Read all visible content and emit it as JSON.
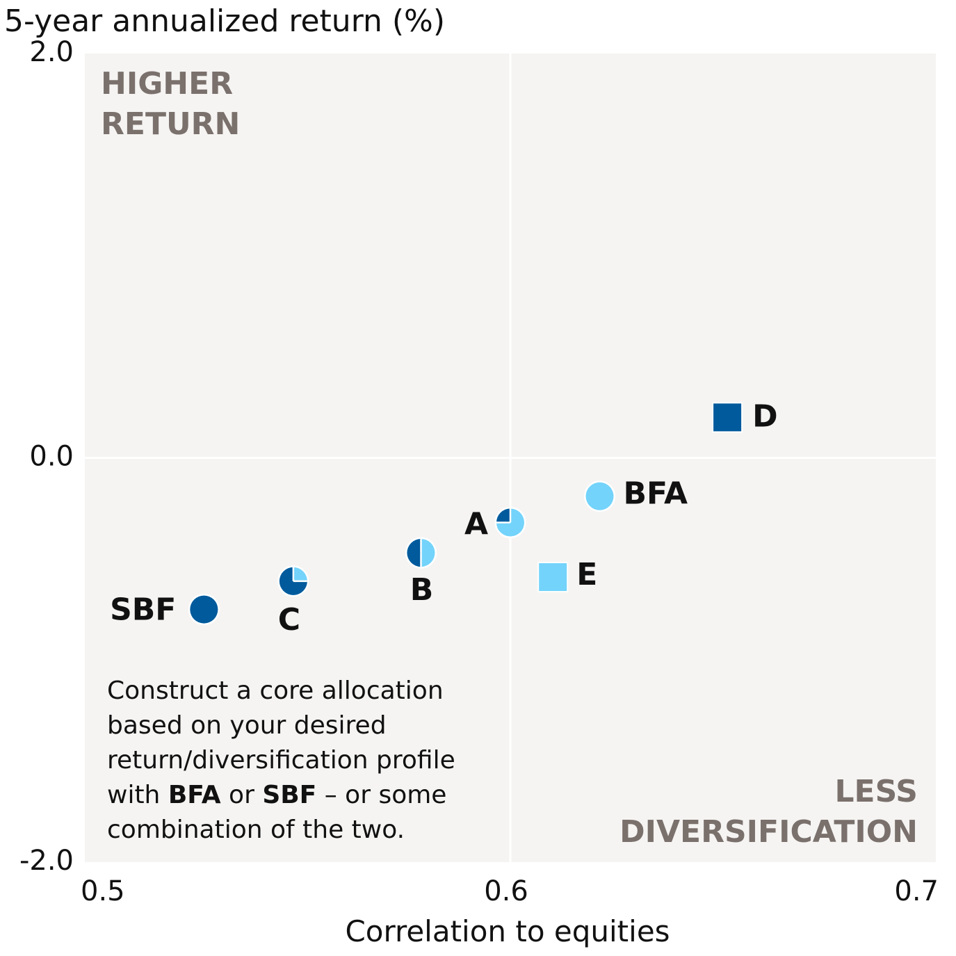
{
  "chart_data": {
    "type": "scatter",
    "title": "",
    "ylabel": "5-year annualized return (%)",
    "xlabel": "Correlation to equities",
    "xlim": [
      0.5,
      0.7
    ],
    "ylim": [
      -2.0,
      2.0
    ],
    "x_ticks": [
      "0.5",
      "0.6",
      "0.7"
    ],
    "y_ticks": [
      "2.0",
      "0.0",
      "-2.0"
    ],
    "grid": "crosshair at x=0.6 and y=0.0",
    "colors": {
      "dark": "#005a9c",
      "light": "#73d3fb",
      "plot_bg": "#f5f4f2",
      "quadrant_text": "#7a706c"
    },
    "quadrant_labels": {
      "top_left": [
        "HIGHER",
        "RETURN"
      ],
      "bottom_right": [
        "LESS",
        "DIVERSIFICATION"
      ]
    },
    "points": [
      {
        "label": "SBF",
        "x": 0.528,
        "y": -0.75,
        "marker": "circle",
        "dark_fraction": 1.0
      },
      {
        "label": "C",
        "x": 0.549,
        "y": -0.61,
        "marker": "circle",
        "dark_fraction": 0.75
      },
      {
        "label": "B",
        "x": 0.579,
        "y": -0.47,
        "marker": "circle",
        "dark_fraction": 0.5
      },
      {
        "label": "A",
        "x": 0.6,
        "y": -0.32,
        "marker": "circle",
        "dark_fraction": 0.25
      },
      {
        "label": "BFA",
        "x": 0.621,
        "y": -0.19,
        "marker": "circle",
        "dark_fraction": 0.0
      },
      {
        "label": "E",
        "x": 0.61,
        "y": -0.59,
        "marker": "square",
        "dark_fraction": 0.0
      },
      {
        "label": "D",
        "x": 0.651,
        "y": 0.2,
        "marker": "square",
        "dark_fraction": 1.0
      }
    ],
    "annotation": [
      [
        {
          "t": "Construct a core allocation",
          "b": false
        }
      ],
      [
        {
          "t": "based on your desired",
          "b": false
        }
      ],
      [
        {
          "t": "return/diversification profile",
          "b": false
        }
      ],
      [
        {
          "t": "with ",
          "b": false
        },
        {
          "t": "BFA",
          "b": true
        },
        {
          "t": " or ",
          "b": false
        },
        {
          "t": "SBF",
          "b": true
        },
        {
          "t": " – or some",
          "b": false
        }
      ],
      [
        {
          "t": "combination of the two.",
          "b": false
        }
      ]
    ]
  }
}
